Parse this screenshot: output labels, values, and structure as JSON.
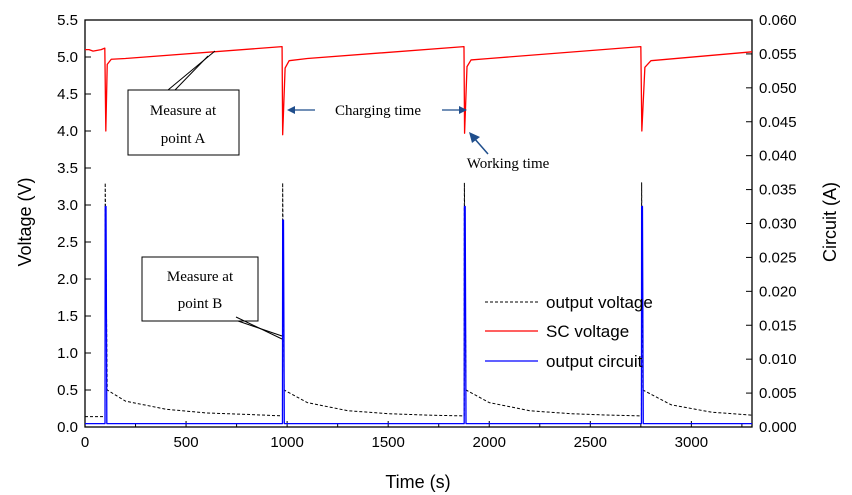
{
  "chart_data": {
    "type": "line",
    "xlabel": "Time (s)",
    "ylabel": "Voltage (V)",
    "y2label": "Circuit (A)",
    "xlim": [
      0,
      3300
    ],
    "ylim": [
      0,
      5.5
    ],
    "y2lim": [
      0,
      0.06
    ],
    "x_ticks": [
      0,
      500,
      1000,
      1500,
      2000,
      2500,
      3000
    ],
    "y_ticks": [
      0.0,
      0.5,
      1.0,
      1.5,
      2.0,
      2.5,
      3.0,
      3.5,
      4.0,
      4.5,
      5.0,
      5.5
    ],
    "y_tick_labels": [
      "0.0",
      "0.5",
      "1.0",
      "1.5",
      "2.0",
      "2.5",
      "3.0",
      "3.5",
      "4.0",
      "4.5",
      "5.0",
      "5.5"
    ],
    "y2_ticks": [
      0.0,
      0.005,
      0.01,
      0.015,
      0.02,
      0.025,
      0.03,
      0.035,
      0.04,
      0.045,
      0.05,
      0.055,
      0.06
    ],
    "y2_tick_labels": [
      "0.000",
      "0.005",
      "0.010",
      "0.015",
      "0.020",
      "0.025",
      "0.030",
      "0.035",
      "0.040",
      "0.045",
      "0.050",
      "0.055",
      "0.060"
    ],
    "grid": false,
    "legend_position": "lower-right",
    "colors": {
      "output_voltage": "#000000",
      "sc_voltage": "#ff0000",
      "output_circuit": "#0000ff"
    },
    "series": [
      {
        "name": "output voltage",
        "axis": "left",
        "style": "dashed",
        "x": [
          0,
          99,
          100,
          110,
          200,
          400,
          600,
          800,
          977,
          978,
          985,
          1100,
          1300,
          1500,
          1700,
          1876,
          1877,
          1885,
          2000,
          2200,
          2400,
          2600,
          2753,
          2754,
          2760,
          2900,
          3100,
          3300
        ],
        "values": [
          0.14,
          0.14,
          3.3,
          0.5,
          0.35,
          0.24,
          0.19,
          0.17,
          0.15,
          3.3,
          0.5,
          0.33,
          0.22,
          0.18,
          0.16,
          0.15,
          3.3,
          0.5,
          0.33,
          0.22,
          0.18,
          0.16,
          0.15,
          3.3,
          0.5,
          0.3,
          0.2,
          0.16
        ]
      },
      {
        "name": "SC voltage",
        "axis": "left",
        "style": "solid",
        "x": [
          0,
          20,
          40,
          80,
          98,
          103,
          110,
          130,
          200,
          975,
          978,
          990,
          1010,
          1100,
          1875,
          1878,
          1890,
          1910,
          2000,
          2750,
          2755,
          2770,
          2800,
          3300
        ],
        "values": [
          5.1,
          5.1,
          5.08,
          5.1,
          5.12,
          4.0,
          4.9,
          4.97,
          4.98,
          5.14,
          3.95,
          4.85,
          4.95,
          4.98,
          5.14,
          3.97,
          4.87,
          4.96,
          4.98,
          5.14,
          4.0,
          4.86,
          4.95,
          5.07
        ]
      },
      {
        "name": "output circuit",
        "axis": "right",
        "style": "solid",
        "x": [
          0,
          99,
          100,
          104,
          108,
          977,
          978,
          982,
          986,
          1876,
          1877,
          1881,
          1885,
          2753,
          2754,
          2758,
          2762,
          3300
        ],
        "values": [
          0.0005,
          0.0005,
          0.0325,
          0.0325,
          0.0005,
          0.0005,
          0.0305,
          0.0305,
          0.0005,
          0.0005,
          0.0325,
          0.0325,
          0.0005,
          0.0005,
          0.0325,
          0.0325,
          0.0005,
          0.0005
        ]
      }
    ],
    "annotations": {
      "measure_a": [
        "Measure at",
        "point A"
      ],
      "measure_b": [
        "Measure at",
        "point B"
      ],
      "charging_time": "Charging time",
      "working_time": "Working time"
    }
  }
}
